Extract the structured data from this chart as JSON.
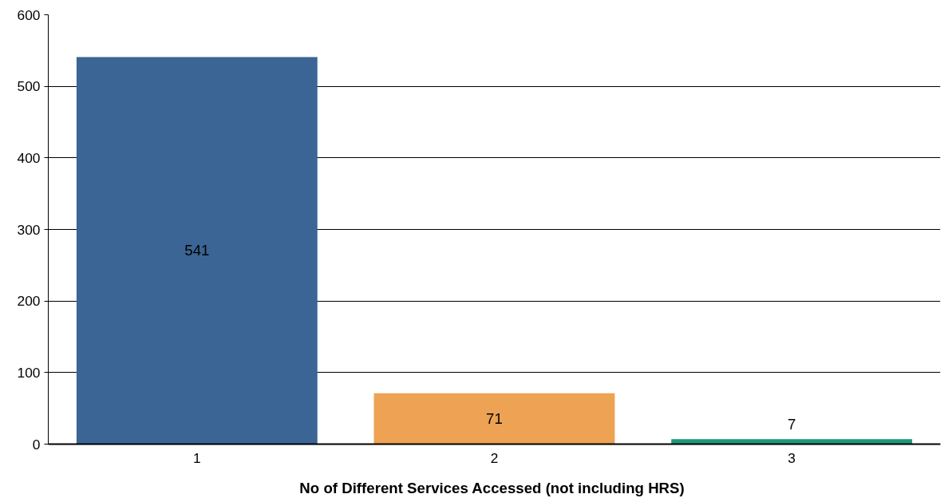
{
  "chart_data": {
    "type": "bar",
    "xlabel": "No of Different Services Accessed (not including  HRS)",
    "categories": [
      "1",
      "2",
      "3"
    ],
    "values": [
      541,
      71,
      7
    ],
    "colors": [
      "#3a6594",
      "#eda254",
      "#1a9a7a"
    ],
    "ylim": [
      0,
      600
    ],
    "yticks": [
      0,
      100,
      200,
      300,
      400,
      500,
      600
    ],
    "grid": "y",
    "data_labels": true
  }
}
